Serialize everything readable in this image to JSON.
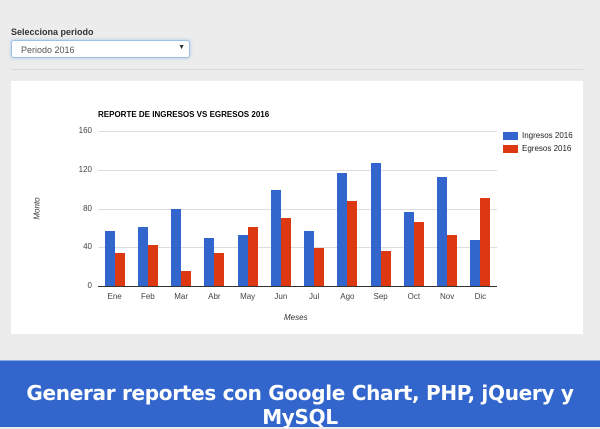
{
  "filter": {
    "label": "Selecciona periodo",
    "selected": "Periodo 2016",
    "caret": "▼"
  },
  "legend": {
    "ingresos": "Ingresos 2016",
    "egresos": "Egresos 2016"
  },
  "colors": {
    "ingresos": "#3366cc",
    "egresos": "#dc3912"
  },
  "banner": {
    "text": "Generar reportes con Google Chart, PHP, jQuery y MySQL"
  },
  "chart_data": {
    "type": "bar",
    "title": "REPORTE DE INGRESOS VS EGRESOS 2016",
    "xlabel": "Meses",
    "ylabel": "Monto",
    "ylim": [
      0,
      160
    ],
    "yticks": [
      0,
      40,
      80,
      120,
      160
    ],
    "grid": true,
    "legend_position": "right",
    "categories": [
      "Ene",
      "Feb",
      "Mar",
      "Abr",
      "May",
      "Jun",
      "Jul",
      "Ago",
      "Sep",
      "Oct",
      "Nov",
      "Dic"
    ],
    "series": [
      {
        "name": "Ingresos 2016",
        "color": "#3366cc",
        "values": [
          57,
          61,
          79,
          50,
          53,
          99,
          57,
          117,
          127,
          76,
          113,
          48
        ]
      },
      {
        "name": "Egresos 2016",
        "color": "#dc3912",
        "values": [
          34,
          42,
          16,
          34,
          61,
          70,
          39,
          88,
          36,
          66,
          53,
          91
        ]
      }
    ]
  }
}
